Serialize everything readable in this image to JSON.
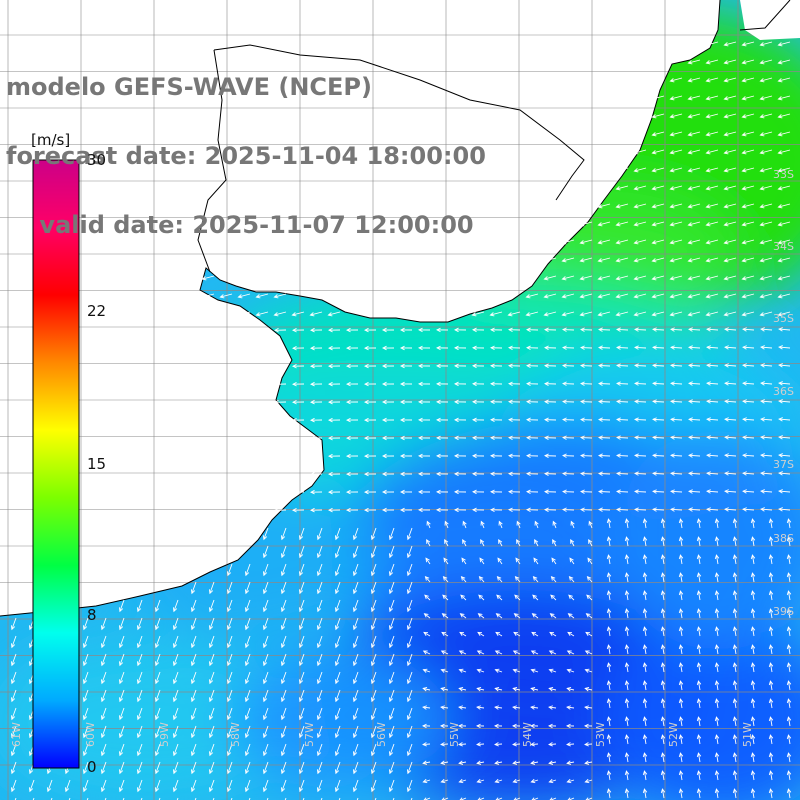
{
  "title": {
    "line1": "modelo GEFS-WAVE (NCEP)",
    "line2": "forecast date: 2025-11-04 18:00:00",
    "line3": "    valid date: 2025-11-07 12:00:00"
  },
  "colorbar": {
    "unit": "[m/s]",
    "ticks": [
      "30",
      "22",
      "15",
      "8",
      "0"
    ],
    "tick_values": [
      30,
      22,
      15,
      8,
      0
    ],
    "colors": [
      "#0000ff",
      "#00aaff",
      "#00ffee",
      "#00ff44",
      "#7cff00",
      "#ffff00",
      "#ff8800",
      "#ff0000",
      "#ff0066",
      "#cc0088"
    ]
  },
  "map": {
    "land_color": "#ffffff",
    "grid": true,
    "lat_labels": [
      "33S",
      "34S",
      "35S",
      "36S",
      "37S",
      "38S",
      "39S"
    ],
    "lon_labels": [
      "61W",
      "60W",
      "59W",
      "58W",
      "57W",
      "56W",
      "55W",
      "54W",
      "53W",
      "52W",
      "51W"
    ]
  }
}
